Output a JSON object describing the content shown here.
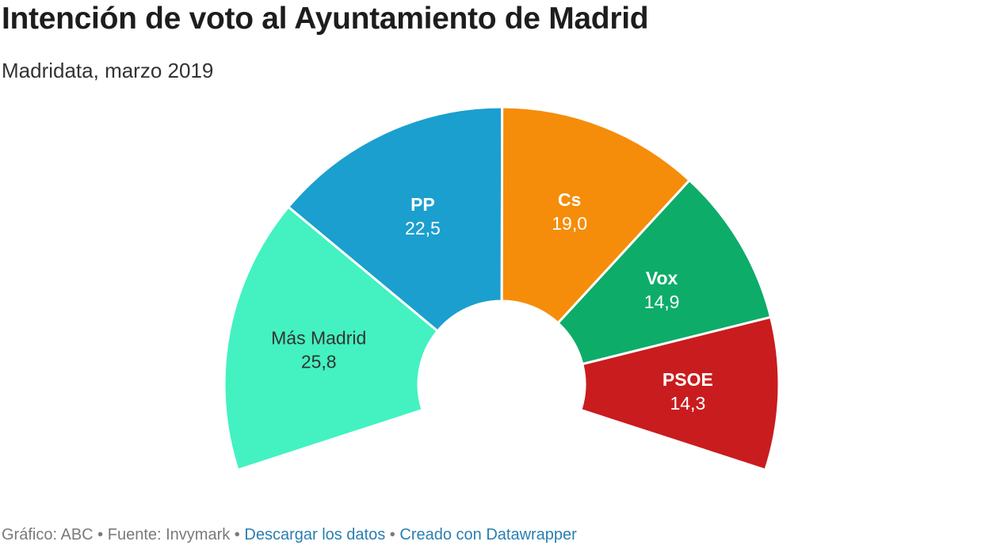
{
  "title": "Intención de voto al Ayuntamiento de Madrid",
  "subtitle": "Madridata, marzo 2019",
  "footer": {
    "credit": "Gráfico: ABC",
    "source": "Fuente: Invymark",
    "download_label": "Descargar los datos",
    "made_with_label": "Creado con Datawrapper",
    "separator": " • "
  },
  "chart_data": {
    "type": "pie",
    "variant": "semicircle-donut",
    "title": "Intención de voto al Ayuntamiento de Madrid",
    "subtitle": "Madridata, marzo 2019",
    "categories": [
      "Más Madrid",
      "PP",
      "Cs",
      "Vox",
      "PSOE"
    ],
    "values": [
      25.8,
      22.5,
      19.0,
      14.9,
      14.3
    ],
    "value_labels": [
      "25,8",
      "22,5",
      "19,0",
      "14,9",
      "14,3"
    ],
    "colors": [
      "#43f2c0",
      "#1b9fcf",
      "#f58d0a",
      "#0dac69",
      "#c91c1e"
    ],
    "label_colors": [
      "#333333",
      "#ffffff",
      "#ffffff",
      "#ffffff",
      "#ffffff"
    ]
  }
}
